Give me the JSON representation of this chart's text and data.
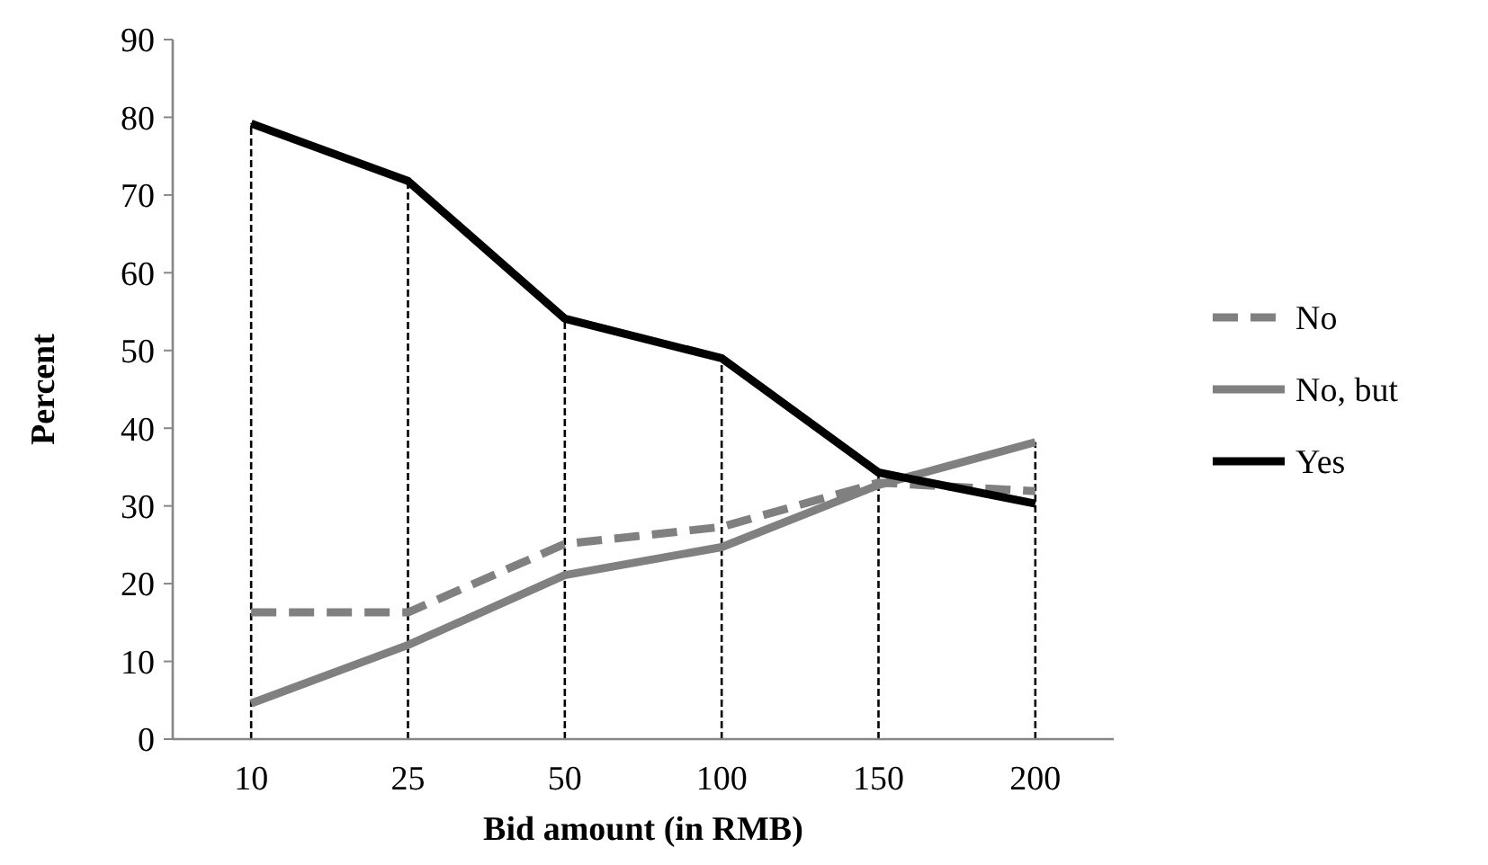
{
  "chart_data": {
    "type": "line",
    "xlabel": "Bid amount (in RMB)",
    "ylabel": "Percent",
    "categories": [
      "10",
      "25",
      "50",
      "100",
      "150",
      "200"
    ],
    "series": [
      {
        "name": "No",
        "color": "#808080",
        "line_style": "dashed",
        "values": [
          16.3,
          16.3,
          25.1,
          27.3,
          33,
          31.9
        ]
      },
      {
        "name": "No, but",
        "color": "#808080",
        "line_style": "solid",
        "values": [
          4.6,
          12.1,
          21.1,
          24.7,
          32.7,
          38.2
        ]
      },
      {
        "name": "Yes",
        "color": "#000000",
        "line_style": "solid",
        "values": [
          79.2,
          71.8,
          54.1,
          49,
          34.3,
          30.3
        ]
      }
    ],
    "ref_lines": [
      {
        "axis": "x",
        "value": "10",
        "color": "#000000",
        "line_style": "dashed"
      },
      {
        "axis": "x",
        "value": "25",
        "color": "#000000",
        "line_style": "dashed"
      },
      {
        "axis": "x",
        "value": "50",
        "color": "#000000",
        "line_style": "dashed"
      },
      {
        "axis": "x",
        "value": "100",
        "color": "#000000",
        "line_style": "dashed"
      },
      {
        "axis": "x",
        "value": "150",
        "color": "#000000",
        "line_style": "dashed"
      },
      {
        "axis": "x",
        "value": "200",
        "color": "#000000",
        "line_style": "dashed"
      }
    ],
    "ylim": [
      0,
      90
    ],
    "yticks": [
      0,
      10,
      20,
      30,
      40,
      50,
      60,
      70,
      80,
      90
    ],
    "grid": false,
    "legend": "right",
    "marker": "none"
  }
}
